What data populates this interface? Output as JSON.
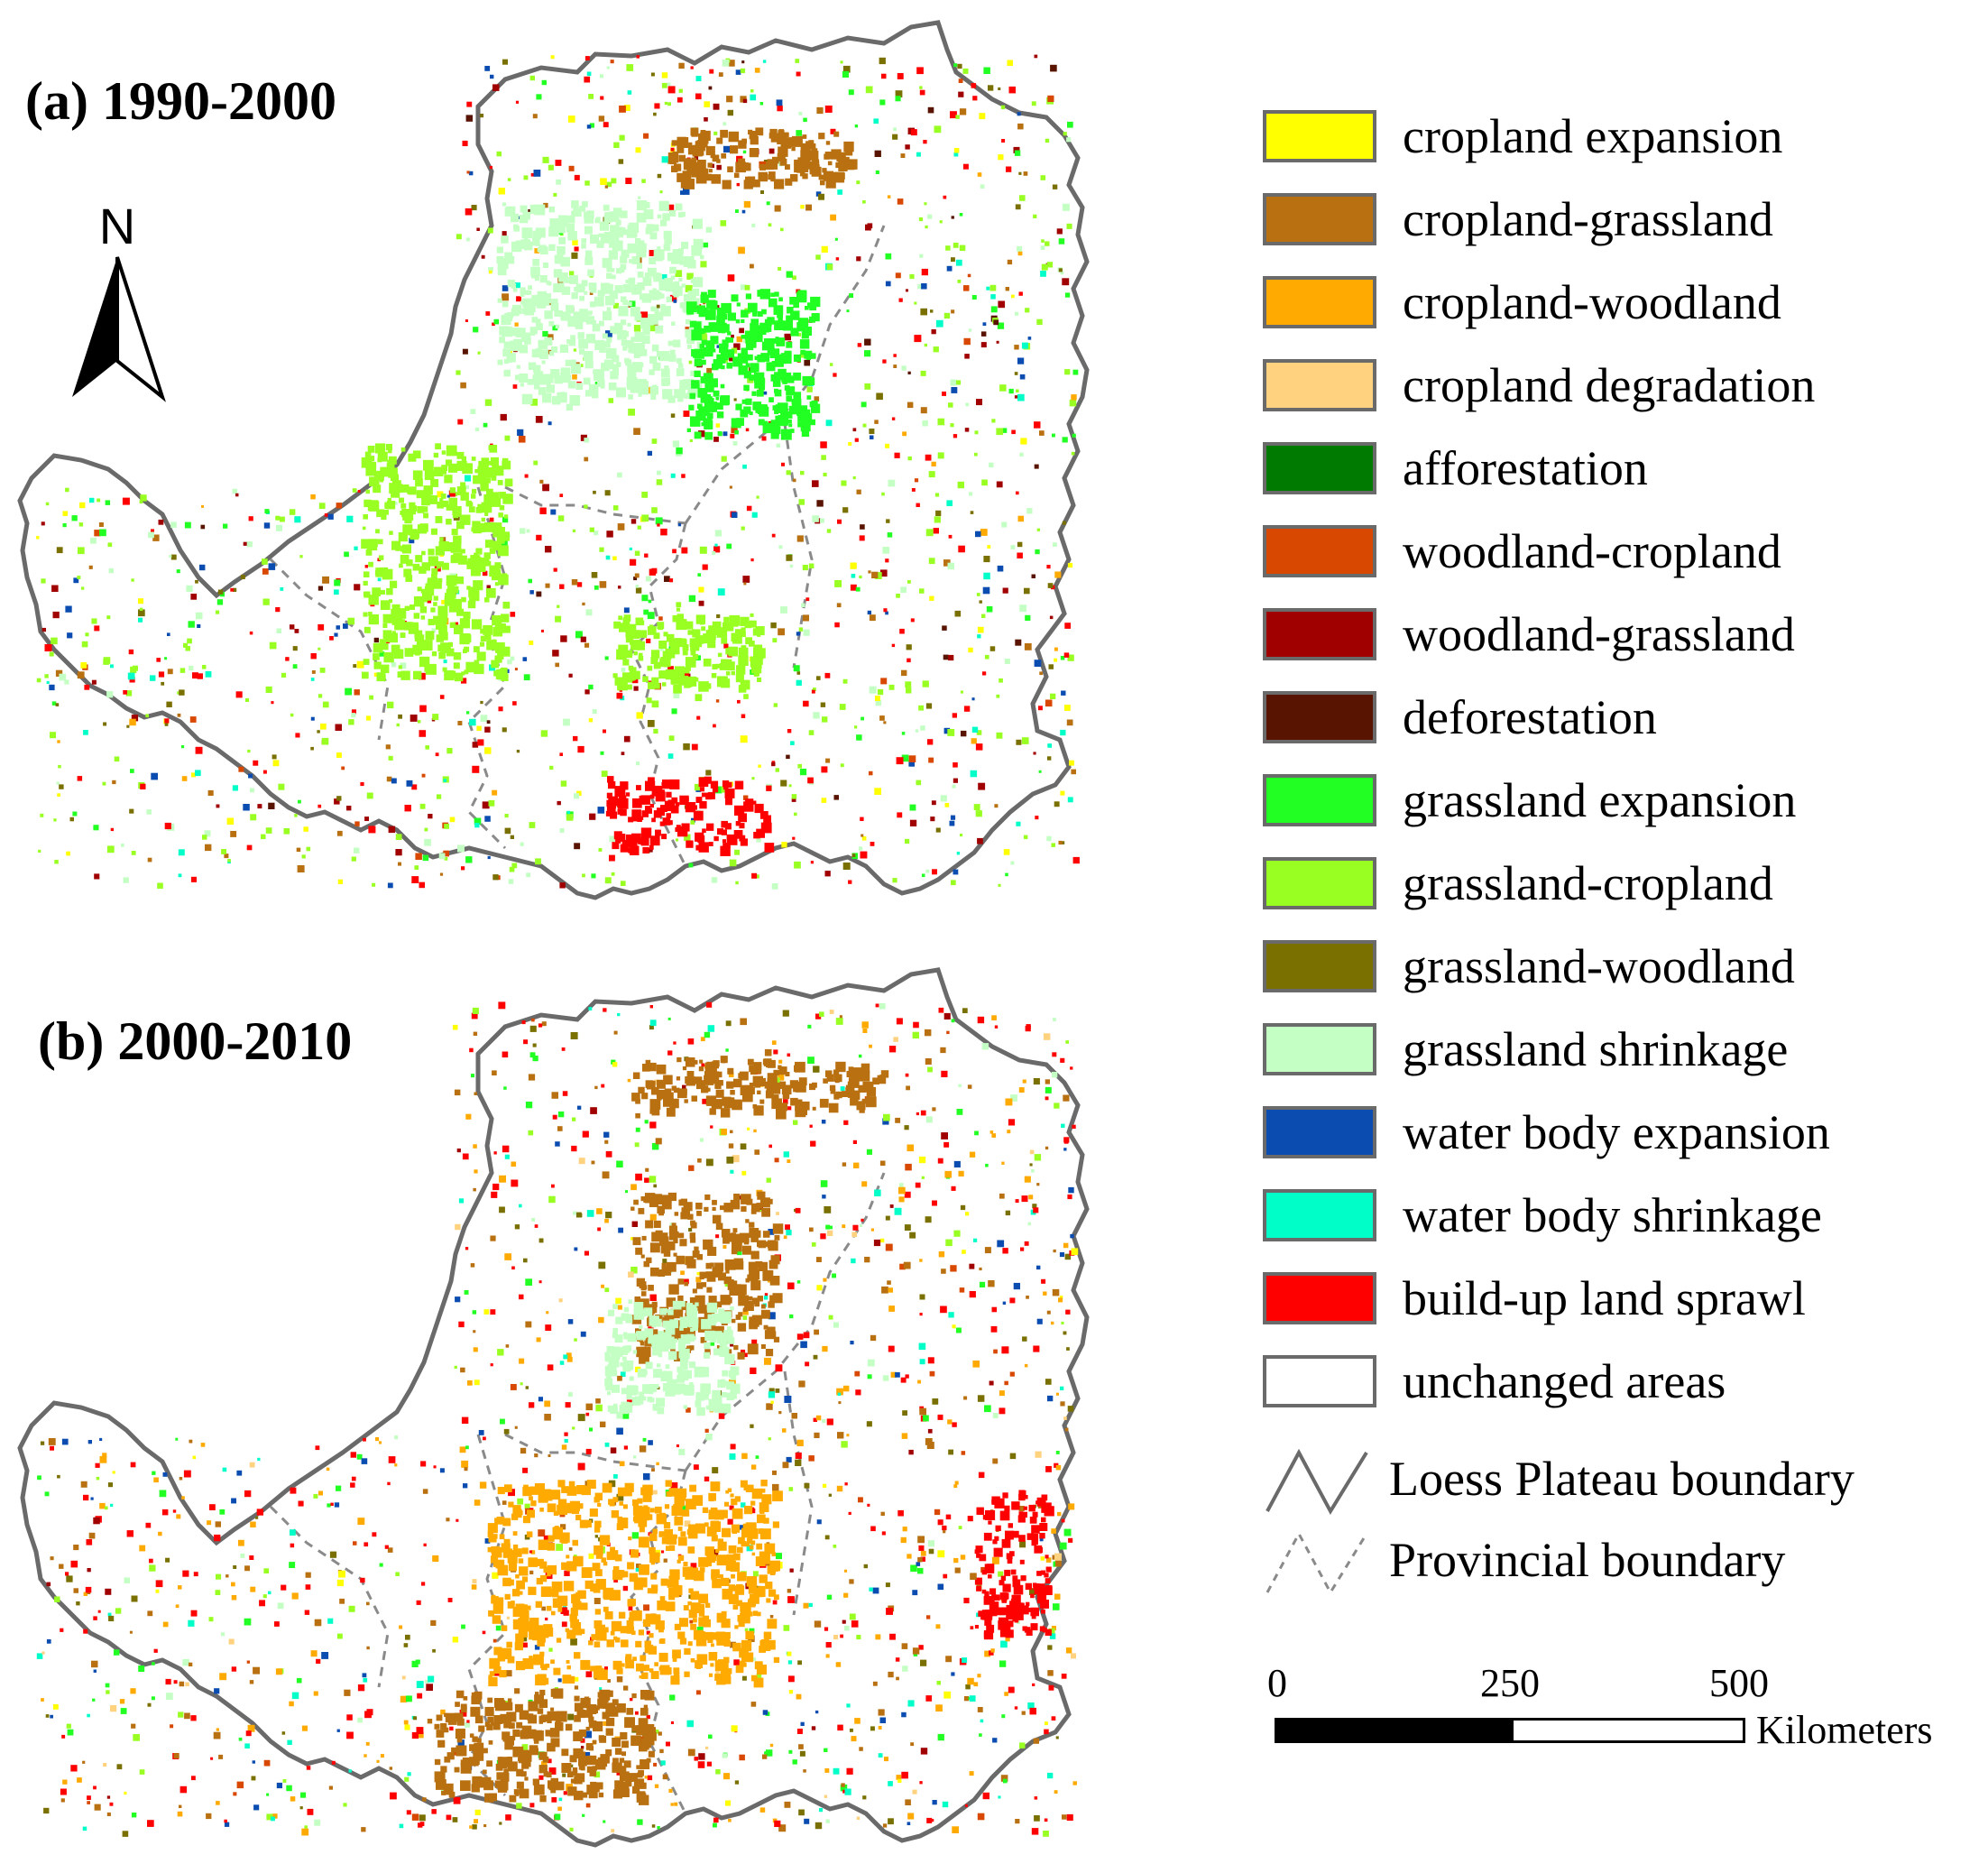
{
  "panels": [
    {
      "title": "(a) 1990-2000"
    },
    {
      "title": "(b) 2000-2010"
    }
  ],
  "north_arrow": {
    "label": "N"
  },
  "legend": {
    "classes": [
      {
        "label": "cropland expansion",
        "color": "#ffff00"
      },
      {
        "label": "cropland-grassland",
        "color": "#b87010"
      },
      {
        "label": "cropland-woodland",
        "color": "#ffaa00"
      },
      {
        "label": "cropland degradation",
        "color": "#ffd27f"
      },
      {
        "label": "afforestation",
        "color": "#007a00"
      },
      {
        "label": "woodland-cropland",
        "color": "#d84800"
      },
      {
        "label": "woodland-grassland",
        "color": "#a00000"
      },
      {
        "label": "deforestation",
        "color": "#581400"
      },
      {
        "label": "grassland expansion",
        "color": "#22ff22"
      },
      {
        "label": "grassland-cropland",
        "color": "#99ff22"
      },
      {
        "label": "grassland-woodland",
        "color": "#7a7000"
      },
      {
        "label": "grassland shrinkage",
        "color": "#c4ffc4"
      },
      {
        "label": "water body expansion",
        "color": "#0a4cb0"
      },
      {
        "label": "water body shrinkage",
        "color": "#00ffc8"
      },
      {
        "label": "build-up land sprawl",
        "color": "#ff0000"
      },
      {
        "label": "unchanged areas",
        "color": "#ffffff"
      }
    ],
    "boundaries": [
      {
        "label": "Loess Plateau boundary",
        "style": "solid",
        "color": "#6a6a6a"
      },
      {
        "label": "Provincial boundary",
        "style": "dashed",
        "color": "#8a8a8a"
      }
    ]
  },
  "scale_bar": {
    "ticks": [
      "0",
      "250",
      "500"
    ],
    "unit": "Kilometers"
  }
}
